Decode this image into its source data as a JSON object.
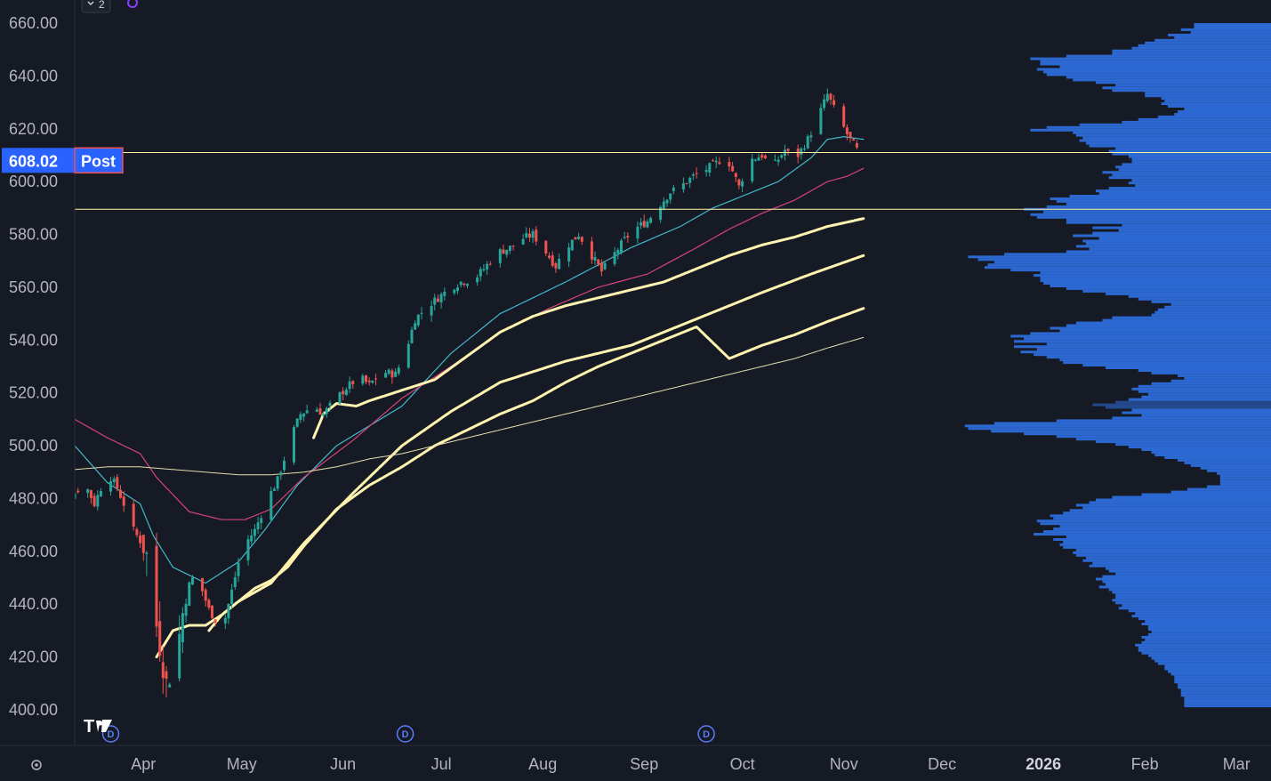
{
  "toolbar": {
    "collapse_count": "2",
    "collapse_icon": "chevron-down-icon",
    "sync_icon": "sync-icon",
    "logo_icon": "tradingview-logo-icon",
    "settings_icon": "settings-gear-icon"
  },
  "colors": {
    "background": "#161a25",
    "up": "#26a69a",
    "down": "#ef5350",
    "ma_fast": "#42b9c9",
    "ma_mid": "#d6437a",
    "ma_thick": "#fff3b0",
    "ma_thin": "#e8e0b0",
    "hline": "#fff3a0",
    "profile": "#2f6fe0",
    "price_label": "#2962ff"
  },
  "chart_data": {
    "type": "candlestick",
    "title": "",
    "xlabel": "",
    "ylabel": "",
    "ylim": [
      396,
      665
    ],
    "y_ticks": [
      "660.00",
      "640.00",
      "620.00",
      "600.00",
      "580.00",
      "560.00",
      "540.00",
      "520.00",
      "500.00",
      "480.00",
      "460.00",
      "440.00",
      "420.00",
      "400.00"
    ],
    "y_tick_values": [
      660,
      640,
      620,
      600,
      580,
      560,
      540,
      520,
      500,
      480,
      460,
      440,
      420,
      400
    ],
    "x_ticks": [
      {
        "label": "Apr",
        "day": 31,
        "bold": false
      },
      {
        "label": "May",
        "day": 61,
        "bold": false
      },
      {
        "label": "Jun",
        "day": 92,
        "bold": false
      },
      {
        "label": "Jul",
        "day": 122,
        "bold": false
      },
      {
        "label": "Aug",
        "day": 153,
        "bold": false
      },
      {
        "label": "Sep",
        "day": 184,
        "bold": false
      },
      {
        "label": "Oct",
        "day": 214,
        "bold": false
      },
      {
        "label": "Nov",
        "day": 245,
        "bold": false
      },
      {
        "label": "Dec",
        "day": 275,
        "bold": false
      },
      {
        "label": "2026",
        "day": 306,
        "bold": true
      },
      {
        "label": "Feb",
        "day": 337,
        "bold": false
      },
      {
        "label": "Mar",
        "day": 365,
        "bold": false
      }
    ],
    "x_domain_days": [
      10,
      378
    ],
    "last_price_label": "608.02",
    "session_label": "Post",
    "last_price": 608.02,
    "horizontal_lines": [
      611,
      589.5
    ],
    "dividend_markers": [
      {
        "label": "D",
        "day": 21
      },
      {
        "label": "D",
        "day": 111
      },
      {
        "label": "D",
        "day": 203
      }
    ],
    "ohlc_anchor_days": [
      1,
      5,
      9,
      13,
      16,
      20,
      23,
      26,
      28,
      31,
      33,
      35,
      38,
      41,
      44,
      47,
      51,
      55,
      58,
      61,
      65,
      69,
      72,
      76,
      79,
      83,
      86,
      90,
      93,
      97,
      100,
      104,
      108,
      111,
      114,
      118,
      121,
      125,
      128,
      132,
      135,
      139,
      143,
      146,
      150,
      153,
      157,
      160,
      164,
      167,
      171,
      174,
      178,
      181,
      185,
      188,
      192,
      195,
      199,
      202,
      206,
      209,
      213,
      216,
      220,
      223,
      227,
      230,
      234,
      237,
      240,
      243,
      246,
      248,
      251
    ],
    "close_anchor_values": [
      476,
      472,
      481,
      486,
      478,
      490,
      484,
      475,
      468,
      462,
      455,
      432,
      410,
      420,
      445,
      452,
      438,
      430,
      445,
      461,
      468,
      480,
      487,
      503,
      512,
      515,
      512,
      518,
      522,
      526,
      523,
      528,
      527,
      535,
      548,
      553,
      556,
      560,
      562,
      563,
      567,
      573,
      575,
      578,
      580,
      575,
      568,
      575,
      580,
      574,
      566,
      571,
      578,
      582,
      585,
      590,
      596,
      598,
      602,
      604,
      607,
      610,
      598,
      608,
      610,
      605,
      612,
      608,
      616,
      624,
      633,
      625,
      618,
      614,
      608
    ],
    "series": [
      {
        "name": "",
        "kind": "ma",
        "color": "#42b9c9",
        "width": 1.2,
        "days": [
          10,
          20,
          30,
          34,
          40,
          50,
          60,
          68,
          78,
          90,
          110,
          125,
          140,
          160,
          180,
          195,
          205,
          215,
          225,
          235,
          240,
          245,
          251
        ],
        "values": [
          500,
          486,
          478,
          466,
          454,
          448,
          456,
          468,
          485,
          500,
          515,
          535,
          550,
          562,
          575,
          583,
          590,
          595,
          600,
          609,
          616,
          617,
          616
        ]
      },
      {
        "name": "",
        "kind": "ma",
        "color": "#d6437a",
        "width": 1.2,
        "days": [
          10,
          20,
          30,
          35,
          45,
          55,
          62,
          70,
          80,
          95,
          110,
          125,
          140,
          155,
          170,
          185,
          200,
          210,
          220,
          230,
          240,
          246,
          251
        ],
        "values": [
          510,
          503,
          497,
          488,
          475,
          472,
          472,
          476,
          488,
          502,
          518,
          530,
          543,
          552,
          560,
          565,
          575,
          582,
          588,
          593,
          600,
          602,
          605
        ]
      },
      {
        "name": "",
        "kind": "ma",
        "color": "#fff3b0",
        "width": 3,
        "days": [
          83,
          86,
          90,
          96,
          100,
          110,
          120,
          130,
          140,
          150,
          160,
          170,
          180,
          190,
          200,
          210,
          220,
          230,
          240,
          251
        ],
        "values": [
          503,
          512,
          516,
          515,
          517,
          521,
          525,
          534,
          543,
          549,
          553,
          556,
          559,
          562,
          567,
          572,
          576,
          579,
          583,
          586
        ]
      },
      {
        "name": "",
        "kind": "ma",
        "color": "#fff3b0",
        "width": 3,
        "days": [
          35,
          40,
          45,
          50,
          55,
          60,
          70,
          80,
          95,
          110,
          125,
          140,
          160,
          180,
          200,
          220,
          235,
          251
        ],
        "values": [
          420,
          430,
          432,
          432,
          436,
          441,
          448,
          463,
          482,
          500,
          513,
          524,
          532,
          538,
          548,
          558,
          565,
          572
        ]
      },
      {
        "name": "",
        "kind": "ma",
        "color": "#fff3b0",
        "width": 3,
        "days": [
          51,
          55,
          60,
          65,
          70,
          75,
          80,
          90,
          100,
          110,
          120,
          130,
          140,
          150,
          160,
          170,
          180,
          190,
          200,
          210,
          220,
          230,
          240,
          251
        ],
        "values": [
          430,
          436,
          441,
          446,
          449,
          454,
          462,
          476,
          485,
          492,
          500,
          506,
          512,
          517,
          524,
          530,
          535,
          540,
          545,
          533,
          538,
          542,
          547,
          552
        ]
      },
      {
        "name": "",
        "kind": "ma",
        "color": "#e8e0b0",
        "width": 1,
        "days": [
          10,
          20,
          30,
          40,
          50,
          60,
          70,
          80,
          90,
          100,
          110,
          120,
          130,
          140,
          150,
          160,
          170,
          180,
          190,
          200,
          210,
          220,
          230,
          240,
          251
        ],
        "values": [
          491,
          492,
          492,
          491,
          490,
          489,
          489,
          490,
          492,
          495,
          497,
          500,
          503,
          506,
          509,
          512,
          515,
          518,
          521,
          524,
          527,
          530,
          533,
          537,
          541
        ]
      }
    ],
    "volume_profile_bins": {
      "price_start": 401,
      "price_step": 1,
      "lengths_left_edge_days": [
        349,
        349,
        349,
        349,
        348,
        348,
        348,
        347,
        347,
        346,
        346,
        346,
        345,
        344,
        343,
        343,
        341,
        340,
        339,
        338,
        336,
        335,
        335,
        334,
        336,
        337,
        336,
        338,
        339,
        338,
        338,
        336,
        337,
        335,
        333,
        334,
        332,
        329,
        330,
        328,
        327,
        328,
        328,
        327,
        326,
        323,
        325,
        324,
        322,
        324,
        328,
        326,
        325,
        320,
        321,
        318,
        319,
        316,
        315,
        316,
        312,
        311,
        312,
        309,
        313,
        303,
        306,
        309,
        311,
        305,
        304,
        309,
        308,
        312,
        314,
        318,
        316,
        320,
        322,
        327,
        336,
        345,
        350,
        356,
        360,
        360,
        360,
        360,
        359,
        356,
        354,
        351,
        349,
        347,
        343,
        340,
        339,
        336,
        332,
        328,
        322,
        316,
        310,
        300,
        290,
        283,
        282,
        291,
        310,
        327,
        336,
        330,
        333,
        325,
        321,
        328,
        332,
        336,
        338,
        335,
        333,
        335,
        339,
        345,
        349,
        347,
        339,
        335,
        325,
        318,
        312,
        311,
        307,
        303,
        299,
        304,
        297,
        307,
        297,
        300,
        296,
        302,
        311,
        308,
        313,
        316,
        324,
        327,
        339,
        340,
        341,
        343,
        345,
        339,
        335,
        332,
        325,
        318,
        313,
        308,
        306,
        305,
        305,
        303,
        305,
        296,
        288,
        289,
        291,
        286,
        283,
        294,
        313,
        320,
        316,
        319,
        318,
        323,
        315,
        321,
        329,
        321,
        330,
        313,
        313,
        304,
        302,
        306,
        300,
        307,
        313,
        310,
        308,
        314,
        323,
        322,
        326,
        334,
        332,
        333,
        326,
        327,
        324,
        329,
        328,
        330,
        333,
        333,
        332,
        327,
        326,
        328,
        320,
        319,
        317,
        318,
        316,
        315,
        302,
        307,
        317,
        330,
        335,
        341,
        346,
        347,
        349,
        344,
        342,
        343,
        342,
        337,
        337,
        327,
        324,
        328,
        322,
        315,
        313,
        307,
        306,
        304,
        311,
        305,
        305,
        302,
        313,
        327,
        327,
        333,
        335,
        337,
        340,
        346,
        344,
        351,
        348,
        352,
        352
      ]
    }
  }
}
